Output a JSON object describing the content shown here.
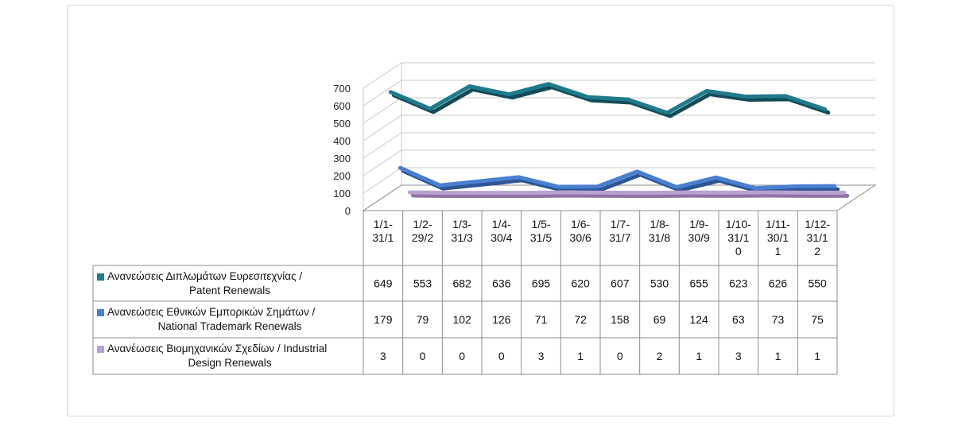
{
  "chart_data": {
    "type": "line",
    "style": "3d-line-with-data-table",
    "categories": [
      "1/1-31/1",
      "1/2-29/2",
      "1/3-31/3",
      "1/4-30/4",
      "1/5-31/5",
      "1/6-30/6",
      "1/7-31/7",
      "1/8-31/8",
      "1/9-30/9",
      "1/10-31/10",
      "1/11-30/11",
      "1/12-31/12"
    ],
    "category_lines": [
      [
        "1/1-",
        "31/1"
      ],
      [
        "1/2-",
        "29/2"
      ],
      [
        "1/3-",
        "31/3"
      ],
      [
        "1/4-",
        "30/4"
      ],
      [
        "1/5-",
        "31/5"
      ],
      [
        "1/6-",
        "30/6"
      ],
      [
        "1/7-",
        "31/7"
      ],
      [
        "1/8-",
        "31/8"
      ],
      [
        "1/9-",
        "30/9"
      ],
      [
        "1/10-",
        "31/1",
        "0"
      ],
      [
        "1/11-",
        "30/1",
        "1"
      ],
      [
        "1/12-",
        "31/1",
        "2"
      ]
    ],
    "series": [
      {
        "name": "Ανανεώσεις Διπλωμάτων Ευρεσιτεχνίας  / Patent Renewals",
        "legend_lines": [
          "Ανανεώσεις Διπλωμάτων Ευρεσιτεχνίας  /",
          "Patent Renewals"
        ],
        "color": "#1f7a8c",
        "dark": "#124b57",
        "values": [
          649,
          553,
          682,
          636,
          695,
          620,
          607,
          530,
          655,
          623,
          626,
          550
        ]
      },
      {
        "name": "Ανανεώσεις Εθνικών Εμπορικών Σημάτων / National Trademark Renewals",
        "legend_lines": [
          "Ανανεώσεις Εθνικών Εμπορικών Σημάτων /",
          "National Trademark Renewals"
        ],
        "color": "#4a7fd0",
        "dark": "#2c5595",
        "values": [
          179,
          79,
          102,
          126,
          71,
          72,
          158,
          69,
          124,
          63,
          73,
          75
        ]
      },
      {
        "name": "Ανανέωσεις Βιομηχανικών Σχεδίων / Industrial Design Renewals",
        "legend_lines": [
          "Ανανέωσεις Βιομηχανικών Σχεδίων / Industrial",
          "Design Renewals"
        ],
        "color": "#b9a2cf",
        "dark": "#8e73a8",
        "values": [
          3,
          0,
          0,
          0,
          3,
          1,
          0,
          2,
          1,
          3,
          1,
          1
        ]
      }
    ],
    "y_ticks": [
      0,
      100,
      200,
      300,
      400,
      500,
      600,
      700
    ],
    "ylim": [
      0,
      700
    ],
    "gridlines": true,
    "legend": "data-table-left"
  }
}
